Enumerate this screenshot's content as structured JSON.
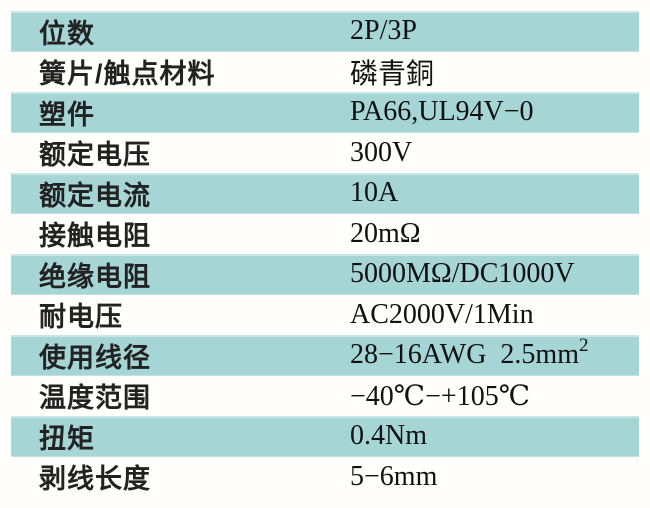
{
  "colors": {
    "page_bg": "#fffefa",
    "row_shaded_bg": "#a6d5d6",
    "row_plain_bg": "#fffefa",
    "label_text": "#222222",
    "value_text": "#111111"
  },
  "table": {
    "rows": [
      {
        "label": "位数",
        "value": "2P/3P",
        "shaded": true
      },
      {
        "label": "簧片/触点材料",
        "value": "磷青銅",
        "shaded": false
      },
      {
        "label": "塑件",
        "value": "PA66,UL94V−0",
        "shaded": true
      },
      {
        "label": "额定电压",
        "value": "300V",
        "shaded": false
      },
      {
        "label": "额定电流",
        "value": "10A",
        "shaded": true
      },
      {
        "label": "接触电阻",
        "value": "20mΩ",
        "shaded": false
      },
      {
        "label": "绝缘电阻",
        "value": "5000MΩ/DC1000V",
        "shaded": true
      },
      {
        "label": "耐电压",
        "value": "AC2000V/1Min",
        "shaded": false
      },
      {
        "label": "使用线径",
        "value": "28−16AWG  2.5mm",
        "value_sup": "2",
        "shaded": true
      },
      {
        "label": "温度范围",
        "value": "−40℃−+105℃",
        "shaded": false
      },
      {
        "label": "扭矩",
        "value": "0.4Nm",
        "shaded": true
      },
      {
        "label": "剥线长度",
        "value": "5−6mm",
        "shaded": false
      }
    ]
  }
}
